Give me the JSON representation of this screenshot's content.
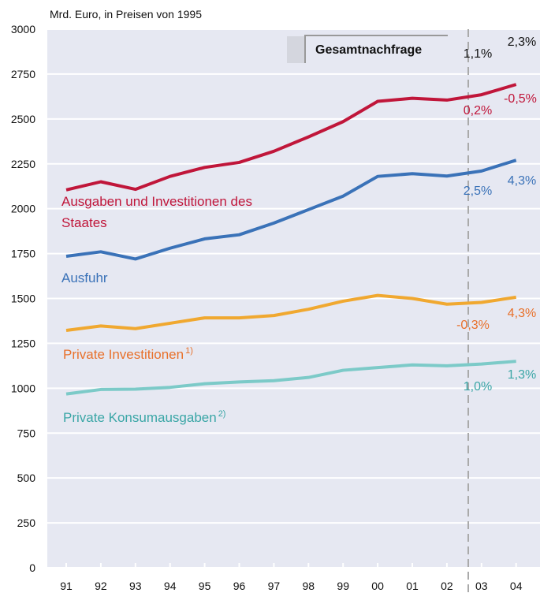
{
  "chart_data": {
    "type": "line",
    "title": "Mrd. Euro, in Preisen von 1995",
    "categories": [
      "91",
      "92",
      "93",
      "94",
      "95",
      "96",
      "97",
      "98",
      "99",
      "00",
      "01",
      "02",
      "03",
      "04"
    ],
    "ylim": [
      0,
      3000
    ],
    "yticks": [
      0,
      250,
      500,
      750,
      1000,
      1250,
      1500,
      1750,
      2000,
      2250,
      2500,
      2750,
      3000
    ],
    "grid": true,
    "series": [
      {
        "name": "Ausgaben und Investitionen des Staates",
        "color": "#c0163a",
        "values": [
          2105,
          2150,
          2108,
          2180,
          2230,
          2258,
          2320,
          2400,
          2485,
          2598,
          2615,
          2605,
          2635,
          2692
        ],
        "changes": [
          "0,2%",
          "-0,5%"
        ]
      },
      {
        "name": "Ausfuhr",
        "color": "#3a72b8",
        "values": [
          1735,
          1760,
          1720,
          1780,
          1832,
          1855,
          1920,
          1995,
          2070,
          2180,
          2195,
          2182,
          2210,
          2270
        ],
        "changes": [
          "2,5%",
          "4,3%"
        ]
      },
      {
        "name": "Private Investitionen",
        "footnote": "1)",
        "color": "#f0a830",
        "label_color": "#e8702a",
        "values": [
          1322,
          1347,
          1332,
          1362,
          1392,
          1392,
          1405,
          1440,
          1485,
          1517,
          1500,
          1468,
          1478,
          1507
        ],
        "changes": [
          "-0,3%",
          "4,3%"
        ]
      },
      {
        "name": "Private Konsumausgaben",
        "footnote": "2)",
        "color": "#7ccac8",
        "label_color": "#3aa6a6",
        "values": [
          968,
          993,
          995,
          1005,
          1025,
          1035,
          1042,
          1060,
          1100,
          1115,
          1130,
          1125,
          1135,
          1150
        ],
        "changes": [
          "1,0%",
          "1,3%"
        ]
      }
    ],
    "total": {
      "label": "Gesamtnachfrage",
      "changes": [
        "1,1%",
        "2,3%"
      ]
    }
  }
}
